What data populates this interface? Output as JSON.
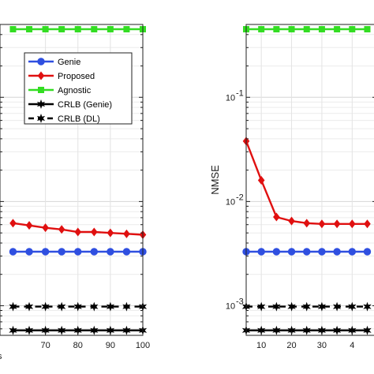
{
  "chart_data": [
    {
      "type": "line",
      "title": "",
      "xlabel": "",
      "ylabel": "",
      "x": [
        60,
        65,
        70,
        75,
        80,
        85,
        90,
        95,
        100
      ],
      "xticks": [
        "70",
        "80",
        "90",
        "100"
      ],
      "xlim": [
        56,
        100
      ],
      "yscale": "log",
      "ylim": [
        0.00052,
        0.5
      ],
      "grid": true,
      "legend": "top-right",
      "series": [
        {
          "name": "Genie",
          "color": "#2f4fe0",
          "marker": "circle",
          "dash": "solid",
          "values": [
            0.0033,
            0.0033,
            0.0033,
            0.0033,
            0.0033,
            0.0033,
            0.0033,
            0.0033,
            0.0033
          ]
        },
        {
          "name": "Proposed",
          "color": "#e01010",
          "marker": "diamond",
          "dash": "solid",
          "values": [
            0.0062,
            0.0059,
            0.0056,
            0.0054,
            0.0051,
            0.0051,
            0.005,
            0.0049,
            0.0048
          ]
        },
        {
          "name": "Agnostic",
          "color": "#33dd22",
          "marker": "square",
          "dash": "solid",
          "values": [
            0.45,
            0.45,
            0.45,
            0.45,
            0.45,
            0.45,
            0.45,
            0.45,
            0.45
          ]
        },
        {
          "name": "CRLB (Genie)",
          "color": "#000000",
          "marker": "star",
          "dash": "solid",
          "values": [
            0.00058,
            0.00058,
            0.00058,
            0.00058,
            0.00058,
            0.00058,
            0.00058,
            0.00058,
            0.00058
          ]
        },
        {
          "name": "CRLB (DL)",
          "color": "#000000",
          "marker": "star",
          "dash": "dashed",
          "values": [
            0.00098,
            0.00098,
            0.00098,
            0.00098,
            0.00098,
            0.00098,
            0.00098,
            0.00098,
            0.00098
          ]
        }
      ]
    },
    {
      "type": "line",
      "title": "",
      "xlabel": "",
      "ylabel": "NMSE",
      "x": [
        5,
        10,
        15,
        20,
        25,
        30,
        35,
        40,
        45
      ],
      "xticks": [
        "10",
        "20",
        "30",
        "4"
      ],
      "xlim": [
        5,
        48
      ],
      "yscale": "log",
      "yticks": [
        "10",
        "10",
        "10"
      ],
      "ytick_exponents": [
        "-1",
        "-2",
        "-3"
      ],
      "ylim": [
        0.00052,
        0.5
      ],
      "grid": true,
      "series": [
        {
          "name": "",
          "color": "#2f4fe0",
          "marker": "circle",
          "dash": "solid",
          "values": [
            0.0033,
            0.0033,
            0.0033,
            0.0033,
            0.0033,
            0.0033,
            0.0033,
            0.0033,
            0.0033
          ]
        },
        {
          "name": "",
          "color": "#e01010",
          "marker": "diamond",
          "dash": "solid",
          "values": [
            0.038,
            0.016,
            0.0071,
            0.0065,
            0.0062,
            0.0061,
            0.0061,
            0.0061,
            0.0061
          ]
        },
        {
          "name": "",
          "color": "#33dd22",
          "marker": "square",
          "dash": "solid",
          "values": [
            0.45,
            0.45,
            0.45,
            0.45,
            0.45,
            0.45,
            0.45,
            0.45,
            0.45
          ]
        },
        {
          "name": "",
          "color": "#000000",
          "marker": "star",
          "dash": "solid",
          "values": [
            0.00058,
            0.00058,
            0.00058,
            0.00058,
            0.00058,
            0.00058,
            0.00058,
            0.00058,
            0.00058
          ]
        },
        {
          "name": "",
          "color": "#000000",
          "marker": "star",
          "dash": "dashed",
          "values": [
            0.00098,
            0.00098,
            0.00098,
            0.00098,
            0.00098,
            0.00098,
            0.00098,
            0.00098,
            0.00098
          ]
        }
      ]
    }
  ],
  "fragments": {
    "left_axis_cut_label": "s"
  }
}
